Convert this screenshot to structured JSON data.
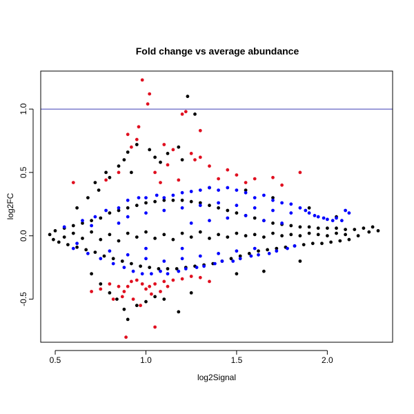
{
  "chart_data": {
    "type": "scatter",
    "title": "Fold change vs average abundance",
    "xlabel": "log2Signal",
    "ylabel": "log2FC",
    "xlim": [
      0.42,
      2.36
    ],
    "ylim": [
      -0.84,
      1.3
    ],
    "x_ticks": [
      0.5,
      1.0,
      1.5,
      2.0
    ],
    "x_tick_labels": [
      "0.5",
      "1.0",
      "1.5",
      "2.0"
    ],
    "y_ticks": [
      -0.5,
      0.0,
      0.5,
      1.0
    ],
    "y_tick_labels": [
      "-0.5",
      "0.0",
      "0.5",
      "1.0"
    ],
    "grid": false,
    "reference_line": {
      "y": 1.0,
      "color": "#3c3cb4"
    },
    "colors": {
      "not_significant": "#000000",
      "significant": "#0000ff",
      "high_fold_change": "#e01020"
    },
    "series": [
      {
        "color": "black",
        "points": [
          [
            0.47,
            0.01
          ],
          [
            0.49,
            -0.03
          ],
          [
            0.5,
            0.04
          ],
          [
            0.52,
            -0.05
          ],
          [
            0.55,
            0.06
          ],
          [
            0.57,
            -0.07
          ],
          [
            0.6,
            0.08
          ],
          [
            0.62,
            -0.09
          ],
          [
            0.65,
            0.1
          ],
          [
            0.67,
            -0.11
          ],
          [
            0.7,
            0.12
          ],
          [
            0.72,
            -0.13
          ],
          [
            0.75,
            0.14
          ],
          [
            0.77,
            -0.16
          ],
          [
            0.8,
            0.18
          ],
          [
            0.82,
            -0.18
          ],
          [
            0.85,
            0.2
          ],
          [
            0.87,
            -0.2
          ],
          [
            0.9,
            0.22
          ],
          [
            0.92,
            -0.22
          ],
          [
            0.95,
            0.24
          ],
          [
            0.97,
            -0.24
          ],
          [
            1.0,
            0.26
          ],
          [
            1.02,
            -0.25
          ],
          [
            1.05,
            0.27
          ],
          [
            1.07,
            -0.26
          ],
          [
            1.1,
            0.28
          ],
          [
            1.12,
            -0.26
          ],
          [
            1.15,
            0.28
          ],
          [
            1.17,
            -0.26
          ],
          [
            1.2,
            0.28
          ],
          [
            1.22,
            -0.25
          ],
          [
            1.25,
            0.27
          ],
          [
            1.27,
            -0.24
          ],
          [
            1.3,
            0.26
          ],
          [
            1.32,
            -0.23
          ],
          [
            1.35,
            0.24
          ],
          [
            1.37,
            -0.22
          ],
          [
            1.4,
            0.22
          ],
          [
            1.42,
            -0.2
          ],
          [
            1.45,
            0.2
          ],
          [
            1.47,
            -0.18
          ],
          [
            1.5,
            0.18
          ],
          [
            1.52,
            -0.16
          ],
          [
            1.55,
            0.16
          ],
          [
            1.57,
            -0.14
          ],
          [
            1.6,
            0.14
          ],
          [
            1.62,
            -0.12
          ],
          [
            1.65,
            0.12
          ],
          [
            1.67,
            -0.11
          ],
          [
            1.7,
            0.1
          ],
          [
            1.72,
            -0.1
          ],
          [
            1.75,
            0.09
          ],
          [
            1.77,
            -0.09
          ],
          [
            1.8,
            0.08
          ],
          [
            1.82,
            -0.08
          ],
          [
            1.85,
            0.07
          ],
          [
            1.87,
            -0.07
          ],
          [
            1.9,
            0.07
          ],
          [
            1.92,
            -0.06
          ],
          [
            1.95,
            0.06
          ],
          [
            1.97,
            -0.06
          ],
          [
            2.0,
            0.06
          ],
          [
            2.02,
            -0.05
          ],
          [
            2.05,
            0.06
          ],
          [
            2.07,
            -0.04
          ],
          [
            2.1,
            0.05
          ],
          [
            2.12,
            -0.03
          ],
          [
            2.15,
            0.05
          ],
          [
            2.17,
            0.0
          ],
          [
            2.2,
            0.06
          ],
          [
            2.23,
            0.03
          ],
          [
            2.25,
            0.07
          ],
          [
            2.28,
            0.04
          ],
          [
            0.55,
            -0.01
          ],
          [
            0.6,
            0.02
          ],
          [
            0.65,
            -0.02
          ],
          [
            0.7,
            0.03
          ],
          [
            0.75,
            -0.03
          ],
          [
            0.8,
            0.01
          ],
          [
            0.85,
            -0.04
          ],
          [
            0.9,
            0.02
          ],
          [
            0.95,
            -0.01
          ],
          [
            1.0,
            0.03
          ],
          [
            1.05,
            -0.02
          ],
          [
            1.1,
            0.01
          ],
          [
            1.15,
            -0.03
          ],
          [
            1.2,
            0.02
          ],
          [
            1.25,
            -0.01
          ],
          [
            1.3,
            0.03
          ],
          [
            1.35,
            -0.02
          ],
          [
            1.4,
            0.01
          ],
          [
            1.45,
            -0.01
          ],
          [
            1.5,
            0.02
          ],
          [
            1.55,
            0.0
          ],
          [
            1.6,
            0.01
          ],
          [
            1.65,
            -0.01
          ],
          [
            1.7,
            0.02
          ],
          [
            1.75,
            0.0
          ],
          [
            1.8,
            0.01
          ],
          [
            1.85,
            0.0
          ],
          [
            1.9,
            0.02
          ],
          [
            1.95,
            0.01
          ],
          [
            2.0,
            0.0
          ],
          [
            2.05,
            0.02
          ],
          [
            2.1,
            0.01
          ],
          [
            0.72,
            0.42
          ],
          [
            0.78,
            0.5
          ],
          [
            0.8,
            0.46
          ],
          [
            0.85,
            0.55
          ],
          [
            0.88,
            0.6
          ],
          [
            0.9,
            0.66
          ],
          [
            0.92,
            0.5
          ],
          [
            0.95,
            0.72
          ],
          [
            1.02,
            0.68
          ],
          [
            1.05,
            0.62
          ],
          [
            1.08,
            0.58
          ],
          [
            1.12,
            0.65
          ],
          [
            1.18,
            0.7
          ],
          [
            1.2,
            0.6
          ],
          [
            1.23,
            1.1
          ],
          [
            1.27,
            0.96
          ],
          [
            0.7,
            -0.3
          ],
          [
            0.75,
            -0.38
          ],
          [
            0.8,
            -0.45
          ],
          [
            0.84,
            -0.5
          ],
          [
            0.88,
            -0.58
          ],
          [
            0.9,
            -0.66
          ],
          [
            0.95,
            -0.55
          ],
          [
            1.0,
            -0.52
          ],
          [
            1.05,
            -0.48
          ],
          [
            1.1,
            -0.5
          ],
          [
            1.18,
            -0.6
          ],
          [
            1.25,
            -0.45
          ],
          [
            1.5,
            -0.3
          ],
          [
            1.65,
            -0.28
          ],
          [
            1.85,
            -0.2
          ],
          [
            0.62,
            0.22
          ],
          [
            0.68,
            0.3
          ],
          [
            0.74,
            0.36
          ],
          [
            1.35,
            0.38
          ],
          [
            1.55,
            0.36
          ],
          [
            1.7,
            0.3
          ],
          [
            1.9,
            0.22
          ],
          [
            2.05,
            0.15
          ]
        ]
      },
      {
        "color": "blue",
        "points": [
          [
            0.55,
            0.07
          ],
          [
            0.6,
            -0.1
          ],
          [
            0.65,
            0.12
          ],
          [
            0.68,
            -0.14
          ],
          [
            0.72,
            0.15
          ],
          [
            0.75,
            -0.18
          ],
          [
            0.78,
            0.2
          ],
          [
            0.82,
            -0.22
          ],
          [
            0.85,
            0.22
          ],
          [
            0.88,
            -0.25
          ],
          [
            0.9,
            0.28
          ],
          [
            0.93,
            -0.28
          ],
          [
            0.96,
            0.3
          ],
          [
            0.98,
            -0.3
          ],
          [
            1.0,
            0.3
          ],
          [
            1.03,
            -0.3
          ],
          [
            1.06,
            0.32
          ],
          [
            1.08,
            -0.28
          ],
          [
            1.1,
            0.3
          ],
          [
            1.12,
            -0.3
          ],
          [
            1.15,
            0.32
          ],
          [
            1.18,
            -0.28
          ],
          [
            1.2,
            0.34
          ],
          [
            1.22,
            -0.26
          ],
          [
            1.25,
            0.35
          ],
          [
            1.28,
            -0.25
          ],
          [
            1.3,
            0.36
          ],
          [
            1.32,
            -0.24
          ],
          [
            1.35,
            0.38
          ],
          [
            1.38,
            -0.22
          ],
          [
            1.4,
            0.36
          ],
          [
            1.42,
            -0.2
          ],
          [
            1.45,
            0.38
          ],
          [
            1.48,
            -0.2
          ],
          [
            1.5,
            0.36
          ],
          [
            1.52,
            -0.18
          ],
          [
            1.55,
            0.34
          ],
          [
            1.58,
            -0.16
          ],
          [
            1.6,
            0.3
          ],
          [
            1.62,
            -0.15
          ],
          [
            1.65,
            0.32
          ],
          [
            1.68,
            -0.14
          ],
          [
            1.7,
            0.28
          ],
          [
            1.72,
            -0.12
          ],
          [
            1.75,
            0.26
          ],
          [
            1.78,
            -0.1
          ],
          [
            1.8,
            0.25
          ],
          [
            1.82,
            -0.08
          ],
          [
            1.85,
            0.22
          ],
          [
            1.88,
            0.2
          ],
          [
            1.9,
            0.18
          ],
          [
            1.93,
            0.16
          ],
          [
            1.95,
            0.15
          ],
          [
            1.98,
            0.14
          ],
          [
            2.0,
            0.13
          ],
          [
            2.03,
            0.12
          ],
          [
            2.05,
            0.14
          ],
          [
            2.08,
            0.12
          ],
          [
            2.1,
            0.2
          ],
          [
            2.12,
            0.18
          ],
          [
            0.9,
            0.15
          ],
          [
            1.0,
            0.18
          ],
          [
            1.1,
            0.2
          ],
          [
            1.2,
            0.22
          ],
          [
            1.3,
            0.24
          ],
          [
            1.4,
            0.26
          ],
          [
            1.5,
            0.24
          ],
          [
            1.6,
            0.22
          ],
          [
            1.7,
            0.2
          ],
          [
            1.8,
            0.18
          ],
          [
            0.9,
            -0.15
          ],
          [
            1.0,
            -0.18
          ],
          [
            1.1,
            -0.2
          ],
          [
            1.2,
            -0.18
          ],
          [
            1.3,
            -0.16
          ],
          [
            1.4,
            -0.14
          ],
          [
            1.5,
            -0.12
          ],
          [
            1.6,
            -0.1
          ],
          [
            1.25,
            0.1
          ],
          [
            1.35,
            0.12
          ],
          [
            1.45,
            0.14
          ],
          [
            1.55,
            0.16
          ],
          [
            1.65,
            0.12
          ],
          [
            1.75,
            0.1
          ],
          [
            1.2,
            -0.1
          ],
          [
            1.0,
            -0.1
          ],
          [
            0.85,
            0.1
          ],
          [
            0.8,
            -0.12
          ],
          [
            0.7,
            0.08
          ],
          [
            0.62,
            -0.06
          ]
        ]
      },
      {
        "color": "red",
        "points": [
          [
            0.98,
            1.23
          ],
          [
            1.02,
            1.12
          ],
          [
            1.01,
            1.04
          ],
          [
            1.22,
            0.98
          ],
          [
            1.2,
            0.96
          ],
          [
            1.3,
            0.83
          ],
          [
            0.96,
            0.86
          ],
          [
            0.9,
            0.8
          ],
          [
            0.95,
            0.76
          ],
          [
            0.92,
            0.7
          ],
          [
            1.1,
            0.72
          ],
          [
            1.15,
            0.68
          ],
          [
            1.25,
            0.65
          ],
          [
            1.27,
            0.6
          ],
          [
            1.3,
            0.62
          ],
          [
            1.35,
            0.55
          ],
          [
            1.12,
            0.56
          ],
          [
            1.05,
            0.5
          ],
          [
            0.85,
            0.5
          ],
          [
            0.78,
            0.44
          ],
          [
            1.4,
            0.45
          ],
          [
            1.5,
            0.48
          ],
          [
            1.55,
            0.42
          ],
          [
            1.6,
            0.45
          ],
          [
            1.7,
            0.46
          ],
          [
            1.75,
            0.4
          ],
          [
            1.85,
            0.5
          ],
          [
            0.6,
            0.42
          ],
          [
            1.18,
            0.44
          ],
          [
            1.08,
            0.42
          ],
          [
            1.45,
            0.52
          ],
          [
            0.75,
            -0.42
          ],
          [
            0.8,
            -0.38
          ],
          [
            0.85,
            -0.4
          ],
          [
            0.88,
            -0.44
          ],
          [
            0.9,
            -0.4
          ],
          [
            0.92,
            -0.36
          ],
          [
            0.95,
            -0.35
          ],
          [
            0.98,
            -0.38
          ],
          [
            1.0,
            -0.42
          ],
          [
            1.02,
            -0.4
          ],
          [
            1.05,
            -0.38
          ],
          [
            1.08,
            -0.44
          ],
          [
            1.1,
            -0.36
          ],
          [
            1.12,
            -0.4
          ],
          [
            1.15,
            -0.35
          ],
          [
            1.2,
            -0.34
          ],
          [
            1.25,
            -0.32
          ],
          [
            1.3,
            -0.33
          ],
          [
            1.35,
            -0.36
          ],
          [
            0.82,
            -0.5
          ],
          [
            0.87,
            -0.48
          ],
          [
            0.93,
            -0.5
          ],
          [
            0.89,
            -0.8
          ],
          [
            1.05,
            -0.72
          ],
          [
            0.7,
            -0.44
          ],
          [
            0.97,
            -0.55
          ],
          [
            1.03,
            -0.46
          ]
        ]
      }
    ]
  }
}
